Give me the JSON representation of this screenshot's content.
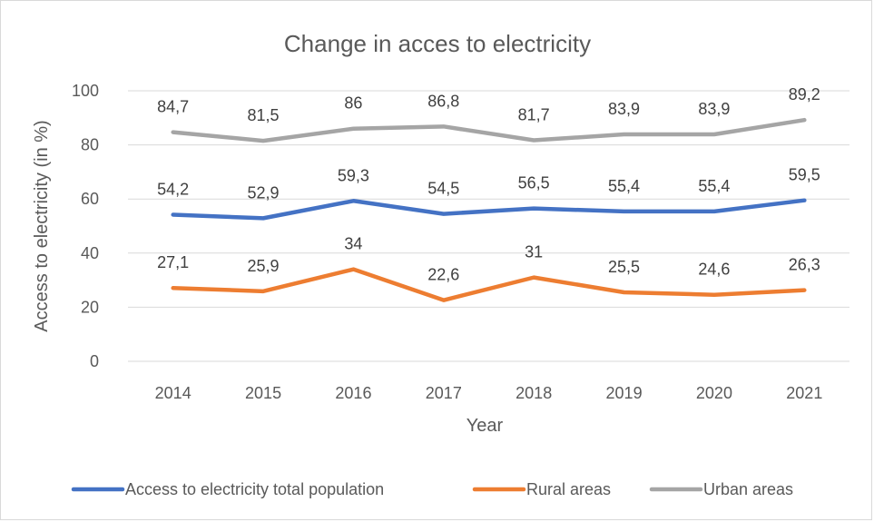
{
  "chart_data": {
    "type": "line",
    "title": "Change in acces to electricity",
    "xlabel": "Year",
    "ylabel": "Access to electricity (in %)",
    "ylim": [
      0,
      100
    ],
    "yticks": [
      0,
      20,
      40,
      60,
      80,
      100
    ],
    "grid": true,
    "legend_position": "bottom",
    "categories": [
      "2014",
      "2015",
      "2016",
      "2017",
      "2018",
      "2019",
      "2020",
      "2021"
    ],
    "series": [
      {
        "name": "Access to electricity total population",
        "color": "#4472c4",
        "values": [
          54.2,
          52.9,
          59.3,
          54.5,
          56.5,
          55.4,
          55.4,
          59.5
        ],
        "labels": [
          "54,2",
          "52,9",
          "59,3",
          "54,5",
          "56,5",
          "55,4",
          "55,4",
          "59,5"
        ]
      },
      {
        "name": "Rural areas",
        "color": "#ed7d31",
        "values": [
          27.1,
          25.9,
          34,
          22.6,
          31,
          25.5,
          24.6,
          26.3
        ],
        "labels": [
          "27,1",
          "25,9",
          "34",
          "22,6",
          "31",
          "25,5",
          "24,6",
          "26,3"
        ]
      },
      {
        "name": "Urban areas",
        "color": "#a5a5a5",
        "values": [
          84.7,
          81.5,
          86,
          86.8,
          81.7,
          83.9,
          83.9,
          89.2
        ],
        "labels": [
          "84,7",
          "81,5",
          "86",
          "86,8",
          "81,7",
          "83,9",
          "83,9",
          "89,2"
        ]
      }
    ]
  }
}
